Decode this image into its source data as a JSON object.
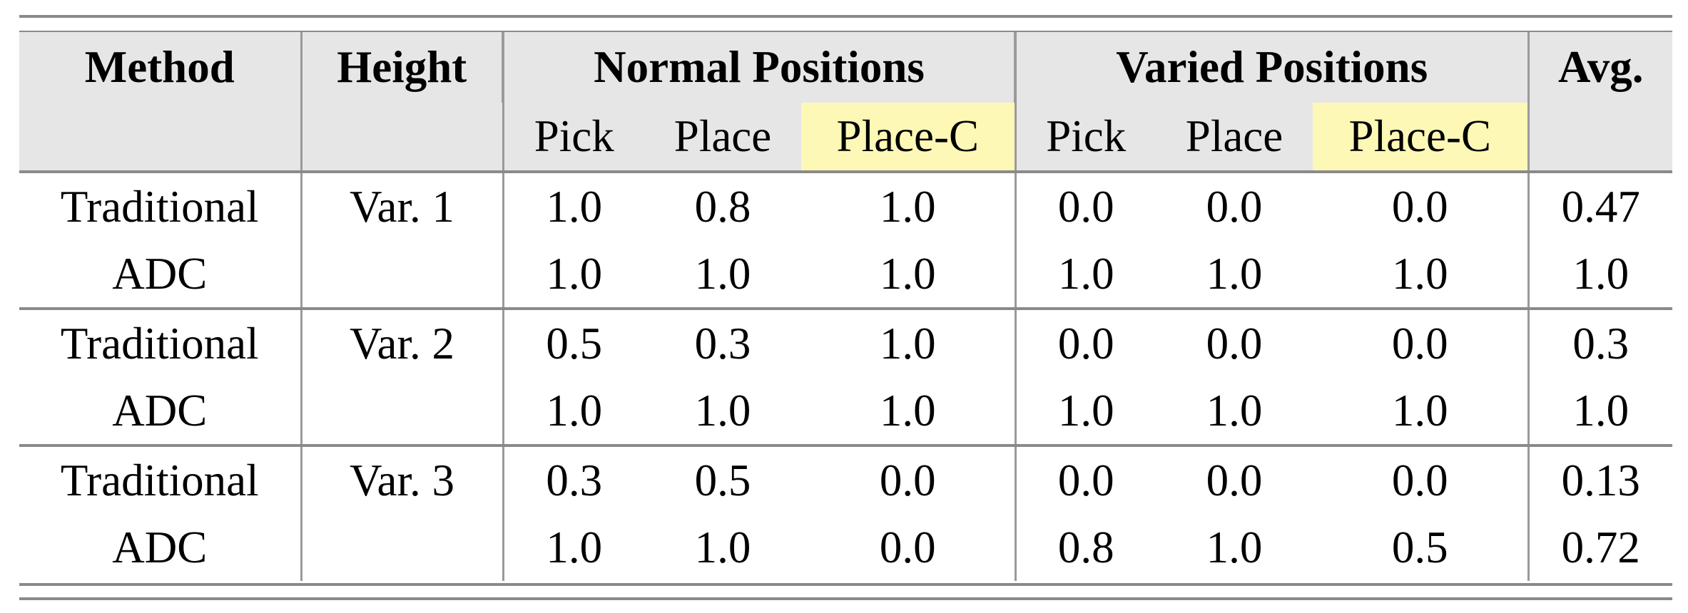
{
  "header": {
    "method": "Method",
    "height": "Height",
    "normal": "Normal Positions",
    "varied": "Varied Positions",
    "avg": "Avg.",
    "sub": [
      "Pick",
      "Place",
      "Place-C",
      "Pick",
      "Place",
      "Place-C"
    ]
  },
  "highlight_color": "#fdf8b6",
  "header_bg": "#e6e6e6",
  "rows": [
    {
      "method": "Traditional",
      "height": "Var. 1",
      "vals": [
        "1.0",
        "0.8",
        "1.0",
        "0.0",
        "0.0",
        "0.0",
        "0.47"
      ]
    },
    {
      "method": "ADC",
      "height": "",
      "vals": [
        "1.0",
        "1.0",
        "1.0",
        "1.0",
        "1.0",
        "1.0",
        "1.0"
      ]
    },
    {
      "method": "Traditional",
      "height": "Var. 2",
      "vals": [
        "0.5",
        "0.3",
        "1.0",
        "0.0",
        "0.0",
        "0.0",
        "0.3"
      ]
    },
    {
      "method": "ADC",
      "height": "",
      "vals": [
        "1.0",
        "1.0",
        "1.0",
        "1.0",
        "1.0",
        "1.0",
        "1.0"
      ]
    },
    {
      "method": "Traditional",
      "height": "Var. 3",
      "vals": [
        "0.3",
        "0.5",
        "0.0",
        "0.0",
        "0.0",
        "0.0",
        "0.13"
      ]
    },
    {
      "method": "ADC",
      "height": "",
      "vals": [
        "1.0",
        "1.0",
        "0.0",
        "0.8",
        "1.0",
        "0.5",
        "0.72"
      ]
    }
  ]
}
